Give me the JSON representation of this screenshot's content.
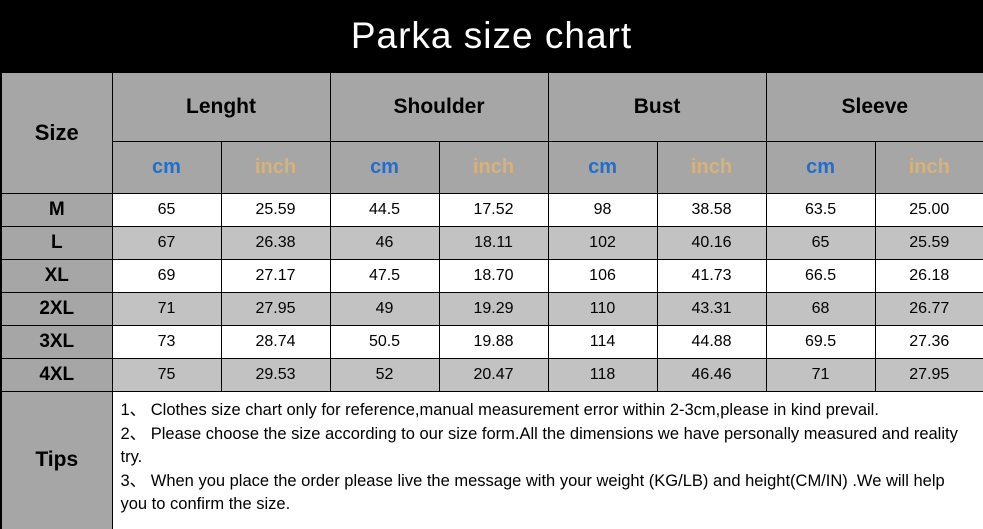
{
  "title": "Parka size chart",
  "table": {
    "size_header": "Size",
    "groups": [
      {
        "label": "Lenght",
        "units": [
          "cm",
          "inch"
        ]
      },
      {
        "label": "Shoulder",
        "units": [
          "cm",
          "inch"
        ]
      },
      {
        "label": "Bust",
        "units": [
          "cm",
          "inch"
        ]
      },
      {
        "label": "Sleeve",
        "units": [
          "cm",
          "inch"
        ]
      }
    ],
    "rows": [
      {
        "size": "M",
        "values": [
          "65",
          "25.59",
          "44.5",
          "17.52",
          "98",
          "38.58",
          "63.5",
          "25.00"
        ]
      },
      {
        "size": "L",
        "values": [
          "67",
          "26.38",
          "46",
          "18.11",
          "102",
          "40.16",
          "65",
          "25.59"
        ]
      },
      {
        "size": "XL",
        "values": [
          "69",
          "27.17",
          "47.5",
          "18.70",
          "106",
          "41.73",
          "66.5",
          "26.18"
        ]
      },
      {
        "size": "2XL",
        "values": [
          "71",
          "27.95",
          "49",
          "19.29",
          "110",
          "43.31",
          "68",
          "26.77"
        ]
      },
      {
        "size": "3XL",
        "values": [
          "73",
          "28.74",
          "50.5",
          "19.88",
          "114",
          "44.88",
          "69.5",
          "27.36"
        ]
      },
      {
        "size": "4XL",
        "values": [
          "75",
          "29.53",
          "52",
          "20.47",
          "118",
          "46.46",
          "71",
          "27.95"
        ]
      }
    ]
  },
  "tips": {
    "label": "Tips",
    "lines": [
      "1、 Clothes size chart only for reference,manual measurement error within 2-3cm,please in kind prevail.",
      "2、 Please choose the size according to our size form.All the dimensions we have personally measured and reality try.",
      "3、 When you place the order please live the message with your weight (KG/LB) and height(CM/IN) .We will help you to confirm the size."
    ]
  },
  "colors": {
    "title_bg": "#000000",
    "title_text": "#ffffff",
    "header_bg": "#a6a6a6",
    "stripe_bg": "#c2c2c2",
    "cm_text": "#1e6fd2",
    "inch_text": "#d6b27c",
    "border": "#000000"
  }
}
